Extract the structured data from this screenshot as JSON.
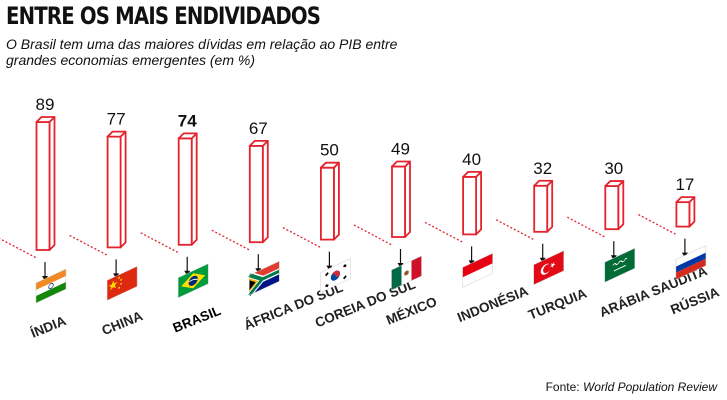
{
  "title": "ENTRE OS MAIS ENDIVIDADOS",
  "subtitle": "O Brasil tem uma das maiores dívidas em relação ao PIB entre grandes economias emergentes (em %)",
  "source_label": "Fonte:",
  "source_name": "World Population Review",
  "colors": {
    "bar_stroke": "#e4232e",
    "highlight": "#111111"
  },
  "chart_data": {
    "type": "bar",
    "title": "ENTRE OS MAIS ENDIVIDADOS",
    "categories": [
      "ÍNDIA",
      "CHINA",
      "BRASIL",
      "ÁFRICA DO SUL",
      "COREIA DO SUL",
      "MÉXICO",
      "INDONÉSIA",
      "TURQUIA",
      "ARÁBIA SAUDITA",
      "RÚSSIA"
    ],
    "values": [
      89,
      77,
      74,
      67,
      50,
      49,
      40,
      32,
      30,
      17
    ],
    "highlight_category": "BRASIL",
    "flags": [
      "india-flag",
      "china-flag",
      "brazil-flag",
      "south-africa-flag",
      "south-korea-flag",
      "mexico-flag",
      "indonesia-flag",
      "turkey-flag",
      "saudi-arabia-flag",
      "russia-flag"
    ],
    "ylim": [
      0,
      89
    ],
    "grid": false,
    "legend": "none"
  }
}
